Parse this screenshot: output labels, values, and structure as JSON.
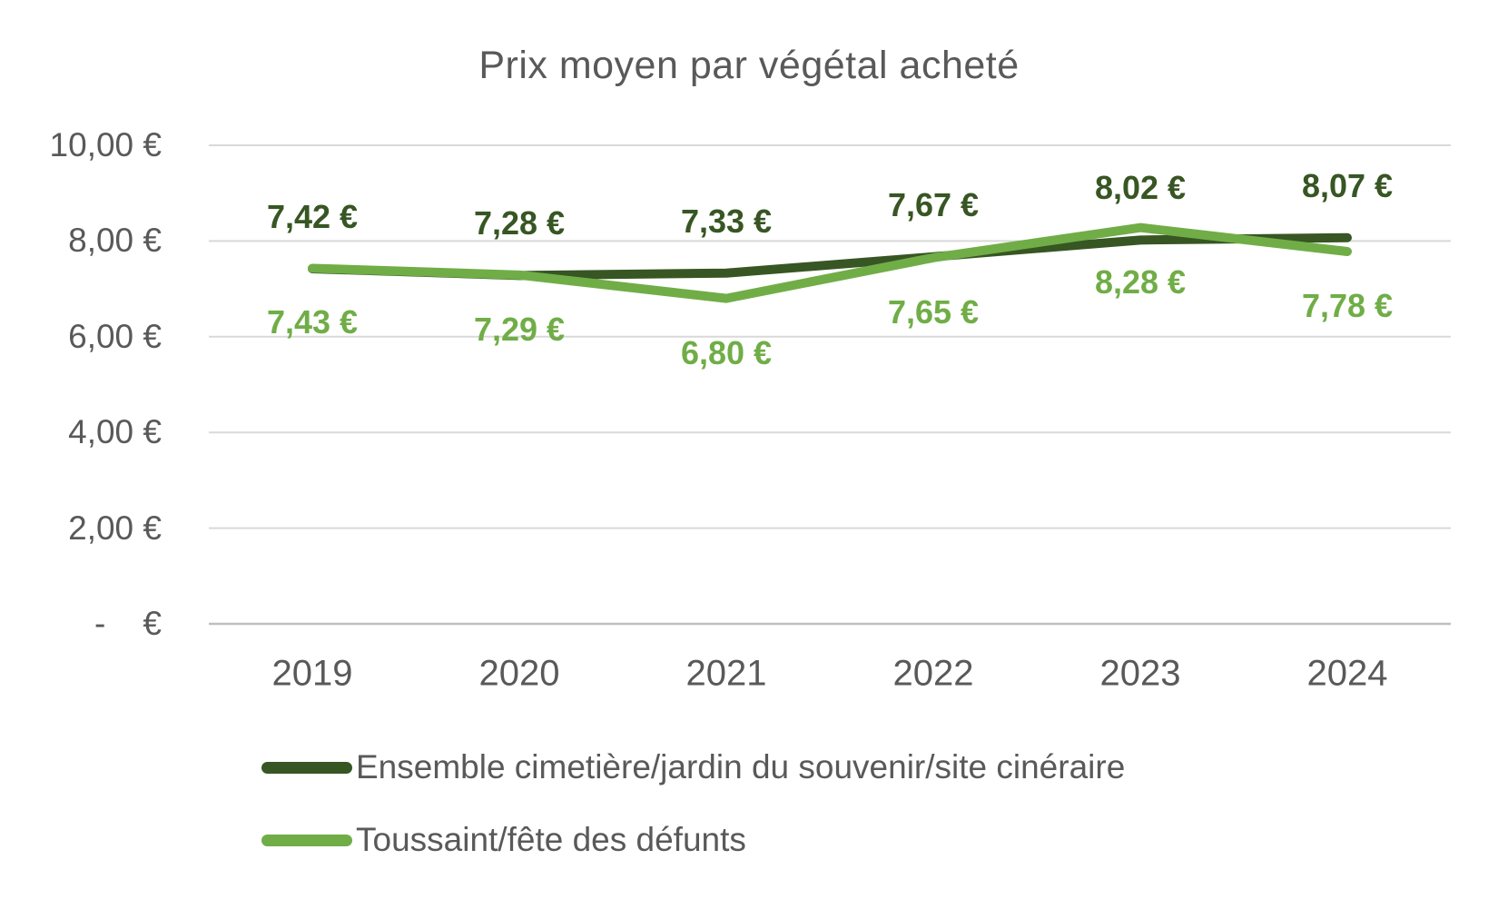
{
  "chart_data": {
    "type": "line",
    "title": "Prix moyen par végétal acheté",
    "categories": [
      "2019",
      "2020",
      "2021",
      "2022",
      "2023",
      "2024"
    ],
    "series": [
      {
        "name": "Ensemble cimetière/jardin du souvenir/site cinéraire",
        "color": "#375623",
        "values": [
          7.42,
          7.28,
          7.33,
          7.67,
          8.02,
          8.07
        ],
        "labels": [
          "7,42 €",
          "7,28 €",
          "7,33 €",
          "7,67 €",
          "8,02 €",
          "8,07 €"
        ],
        "label_position": "above"
      },
      {
        "name": "Toussaint/fête des défunts",
        "color": "#70ad47",
        "values": [
          7.43,
          7.29,
          6.8,
          7.65,
          8.28,
          7.78
        ],
        "labels": [
          "7,43 €",
          "7,29 €",
          "6,80 €",
          "7,65 €",
          "8,28 €",
          "7,78 €"
        ],
        "label_position": "below"
      }
    ],
    "y_axis": {
      "range": [
        0,
        10
      ],
      "ticks": [
        0,
        2,
        4,
        6,
        8,
        10
      ],
      "tick_labels": [
        "-    €",
        "2,00 €",
        "4,00 €",
        "6,00 €",
        "8,00 €",
        "10,00 €"
      ]
    },
    "grid": true,
    "legend_position": "bottom",
    "colors": {
      "text_gray": "#595959",
      "gridline": "#d9d9d9",
      "axis_line": "#bfbfbf",
      "background": "#ffffff"
    }
  }
}
